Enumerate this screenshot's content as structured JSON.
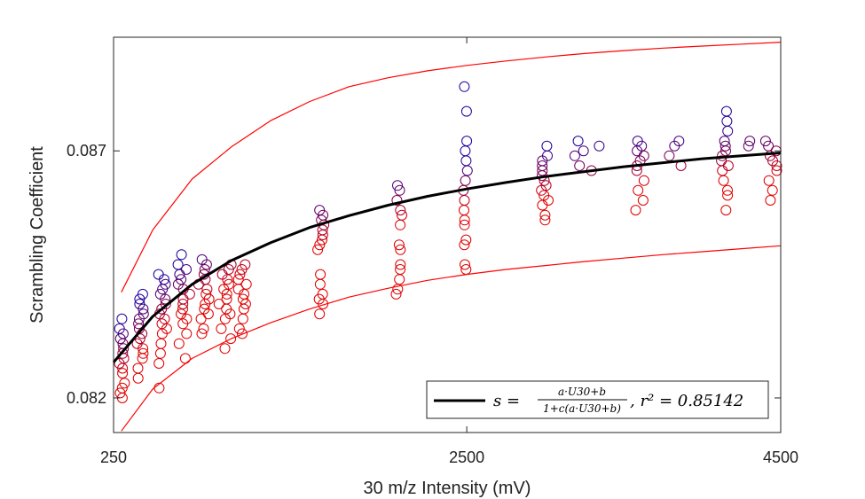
{
  "chart_data": {
    "type": "scatter",
    "title": "",
    "xlabel": "30 m/z Intensity (mV)",
    "ylabel": "Scrambling Coefficient",
    "xlim": [
      250,
      4500
    ],
    "ylim": [
      0.0813,
      0.0893
    ],
    "xticks": [
      250,
      2500,
      4500
    ],
    "xtick_labels": [
      "250",
      "2500",
      "4500"
    ],
    "yticks": [
      0.082,
      0.087
    ],
    "ytick_labels": [
      "0.082",
      "0.087"
    ],
    "grid": false,
    "legend": {
      "placement": "bottom-right",
      "entries": [
        {
          "label_parts": {
            "lhs": "s =",
            "numerator": "a·U30+b",
            "denominator": "1+c(a·U30+b)",
            "rhs": ", r² = 0.85142"
          },
          "r2": "0.85142",
          "color": "#000000"
        }
      ]
    },
    "colors": {
      "fit": "#000000",
      "bounds": "#ff0000",
      "marker_low": "#e00000",
      "marker_high": "#2000a0"
    },
    "fit_curve": {
      "x": [
        250,
        500,
        750,
        1000,
        1250,
        1500,
        1750,
        2000,
        2250,
        2500,
        2750,
        3000,
        3250,
        3500,
        3750,
        4000,
        4250,
        4500
      ],
      "y": [
        0.08272,
        0.08365,
        0.0843,
        0.08478,
        0.08514,
        0.08545,
        0.08569,
        0.0859,
        0.08608,
        0.08623,
        0.08636,
        0.08648,
        0.08658,
        0.08668,
        0.08676,
        0.08684,
        0.0869,
        0.08696
      ]
    },
    "upper_bound": {
      "x": [
        300,
        500,
        750,
        1000,
        1250,
        1500,
        1750,
        2000,
        2250,
        2500,
        2750,
        3000,
        3250,
        3500,
        3750,
        4000,
        4250,
        4500
      ],
      "y": [
        0.08414,
        0.0854,
        0.08643,
        0.08708,
        0.08761,
        0.088,
        0.0883,
        0.08848,
        0.08862,
        0.08873,
        0.08882,
        0.0889,
        0.08897,
        0.08903,
        0.08908,
        0.08912,
        0.08916,
        0.0892
      ]
    },
    "lower_bound": {
      "x": [
        300,
        500,
        750,
        1000,
        1250,
        1500,
        1750,
        2000,
        2250,
        2500,
        2750,
        3000,
        3250,
        3500,
        3750,
        4000,
        4250,
        4500
      ],
      "y": [
        0.08133,
        0.08218,
        0.0828,
        0.0832,
        0.08352,
        0.0838,
        0.08404,
        0.08422,
        0.08438,
        0.0845,
        0.0846,
        0.08468,
        0.08476,
        0.08483,
        0.0849,
        0.08496,
        0.08502,
        0.08508
      ]
    },
    "clusters": [
      {
        "x": 300,
        "spread": 20,
        "y": [
          0.082,
          0.0821,
          0.0822,
          0.0823,
          0.0825,
          0.0826,
          0.0827,
          0.0828,
          0.0829,
          0.083,
          0.0831,
          0.0832,
          0.0833,
          0.0834,
          0.0836
        ]
      },
      {
        "x": 420,
        "spread": 25,
        "y": [
          0.0824,
          0.0826,
          0.0828,
          0.0829,
          0.083,
          0.0831,
          0.0832,
          0.0833,
          0.0834,
          0.0835,
          0.0836,
          0.0837,
          0.0838,
          0.0839,
          0.084,
          0.0841
        ]
      },
      {
        "x": 560,
        "spread": 30,
        "y": [
          0.0822,
          0.0827,
          0.0829,
          0.0831,
          0.0833,
          0.0834,
          0.0835,
          0.0836,
          0.0837,
          0.0838,
          0.0839,
          0.084,
          0.0841,
          0.0842,
          0.0843,
          0.0844,
          0.0845
        ]
      },
      {
        "x": 700,
        "spread": 40,
        "y": [
          0.0828,
          0.0831,
          0.0833,
          0.0835,
          0.0836,
          0.0837,
          0.0838,
          0.0839,
          0.084,
          0.0841,
          0.0842,
          0.0843,
          0.0844,
          0.0845,
          0.0846,
          0.0847,
          0.0849
        ]
      },
      {
        "x": 830,
        "spread": 40,
        "y": [
          0.0833,
          0.0834,
          0.0836,
          0.0837,
          0.0838,
          0.0839,
          0.084,
          0.0841,
          0.0842,
          0.0843,
          0.0844,
          0.0845,
          0.0846,
          0.0847,
          0.0848
        ]
      },
      {
        "x": 960,
        "spread": 40,
        "y": [
          0.083,
          0.0832,
          0.0834,
          0.0836,
          0.0837,
          0.0838,
          0.0839,
          0.084,
          0.0841,
          0.0842,
          0.0843,
          0.0844,
          0.0845,
          0.0846,
          0.0847
        ]
      },
      {
        "x": 1070,
        "spread": 30,
        "y": [
          0.0833,
          0.0834,
          0.0836,
          0.0838,
          0.0839,
          0.084,
          0.0841,
          0.0842,
          0.0843,
          0.0844,
          0.0845,
          0.0846,
          0.0847
        ]
      },
      {
        "x": 1570,
        "spread": 20,
        "y": [
          0.0837,
          0.0839,
          0.084,
          0.0841,
          0.0843,
          0.0845,
          0.085,
          0.0851,
          0.0852,
          0.0853,
          0.0854,
          0.0855,
          0.0856,
          0.0857,
          0.0858
        ]
      },
      {
        "x": 2070,
        "spread": 20,
        "y": [
          0.0841,
          0.0842,
          0.0844,
          0.0846,
          0.0847,
          0.085,
          0.0851,
          0.0855,
          0.0857,
          0.0858,
          0.086,
          0.0862,
          0.0863
        ]
      },
      {
        "x": 2490,
        "spread": 15,
        "y": [
          0.0846,
          0.0847,
          0.0851,
          0.0852,
          0.0855,
          0.0856,
          0.0858,
          0.086,
          0.0862,
          0.0864,
          0.0866,
          0.0868,
          0.087,
          0.0872,
          0.0878,
          0.0883
        ]
      },
      {
        "x": 3000,
        "spread": 25,
        "y": [
          0.0856,
          0.0857,
          0.0859,
          0.086,
          0.0861,
          0.0862,
          0.0863,
          0.0864,
          0.0865,
          0.0866,
          0.0867,
          0.0868,
          0.0869,
          0.0871
        ]
      },
      {
        "x": 3250,
        "spread": 110,
        "y": [
          0.0866,
          0.0867,
          0.0869,
          0.087,
          0.0871,
          0.0872
        ]
      },
      {
        "x": 3600,
        "spread": 30,
        "y": [
          0.0858,
          0.086,
          0.0862,
          0.0864,
          0.0866,
          0.0867,
          0.0868,
          0.0869,
          0.087,
          0.0871,
          0.0872
        ]
      },
      {
        "x": 3820,
        "spread": 70,
        "y": [
          0.0867,
          0.0869,
          0.0871,
          0.0872
        ]
      },
      {
        "x": 4150,
        "spread": 30,
        "y": [
          0.0858,
          0.0861,
          0.0862,
          0.0864,
          0.0866,
          0.0867,
          0.0868,
          0.0869,
          0.087,
          0.0871,
          0.0872,
          0.0874,
          0.0876,
          0.0878
        ]
      },
      {
        "x": 4310,
        "spread": 50,
        "y": [
          0.0871,
          0.0872
        ]
      },
      {
        "x": 4440,
        "spread": 40,
        "y": [
          0.086,
          0.0862,
          0.0864,
          0.0866,
          0.0867,
          0.0868,
          0.0869,
          0.087,
          0.0871,
          0.0872
        ]
      }
    ]
  }
}
